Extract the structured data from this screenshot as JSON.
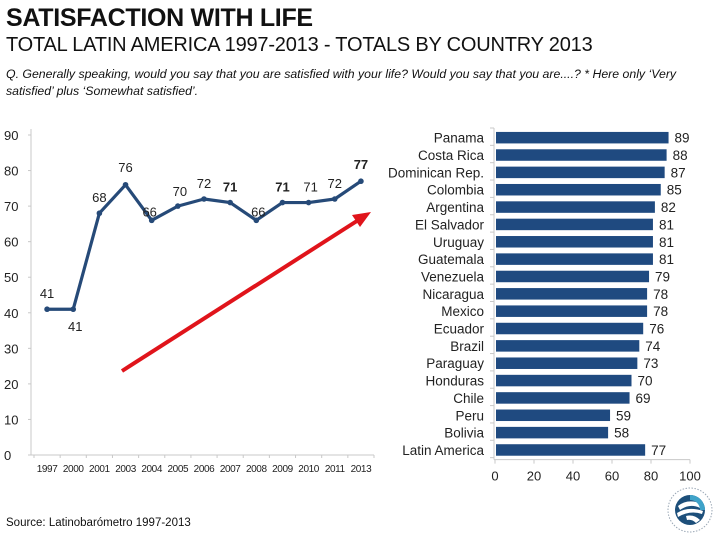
{
  "header": {
    "title": "SATISFACTION WITH LIFE",
    "subtitle": "TOTAL LATIN AMERICA 1997-2013 - TOTALS BY COUNTRY 2013",
    "question": "Q. Generally speaking, would you say that you are satisfied with your life? Would you say that you are....? * Here only ‘Very satisfied’ plus ‘Somewhat satisfied’."
  },
  "footer": {
    "source": "Source: Latinobarómetro 1997-2013",
    "logo": "latinobarometro-logo"
  },
  "colors": {
    "line": "#264a78",
    "bar": "#1f4a80",
    "arrow": "#e0141b",
    "axis": "#c8c8c8"
  },
  "chart_data": [
    {
      "type": "line",
      "title": "Total Latin America 1997-2013",
      "xlabel": "",
      "ylabel": "",
      "x": [
        "1997",
        "2000",
        "2001",
        "2003",
        "2004",
        "2005",
        "2006",
        "2007",
        "2008",
        "2009",
        "2010",
        "2011",
        "2013"
      ],
      "series": [
        {
          "name": "Satisfied with life",
          "values": [
            41,
            41,
            68,
            76,
            66,
            70,
            72,
            71,
            66,
            71,
            71,
            72,
            77
          ]
        }
      ],
      "ylim": [
        0,
        90
      ],
      "yticks": [
        "0",
        "10",
        "20",
        "30",
        "40",
        "50",
        "60",
        "70",
        "80",
        "90"
      ],
      "grid": false,
      "annotations": [
        {
          "type": "arrow",
          "color": "red",
          "direction": "upward trend"
        }
      ]
    },
    {
      "type": "bar",
      "orientation": "horizontal",
      "title": "Totals by country 2013",
      "categories": [
        "Panama",
        "Costa Rica",
        "Dominican Rep.",
        "Colombia",
        "Argentina",
        "El Salvador",
        "Uruguay",
        "Guatemala",
        "Venezuela",
        "Nicaragua",
        "Mexico",
        "Ecuador",
        "Brazil",
        "Paraguay",
        "Honduras",
        "Chile",
        "Peru",
        "Bolivia",
        "Latin America"
      ],
      "values": [
        89,
        88,
        87,
        85,
        82,
        81,
        81,
        81,
        79,
        78,
        78,
        76,
        74,
        73,
        70,
        69,
        59,
        58,
        77
      ],
      "xlim": [
        0,
        100
      ],
      "xticks": [
        "0",
        "20",
        "40",
        "60",
        "80",
        "100"
      ],
      "grid": false
    }
  ]
}
